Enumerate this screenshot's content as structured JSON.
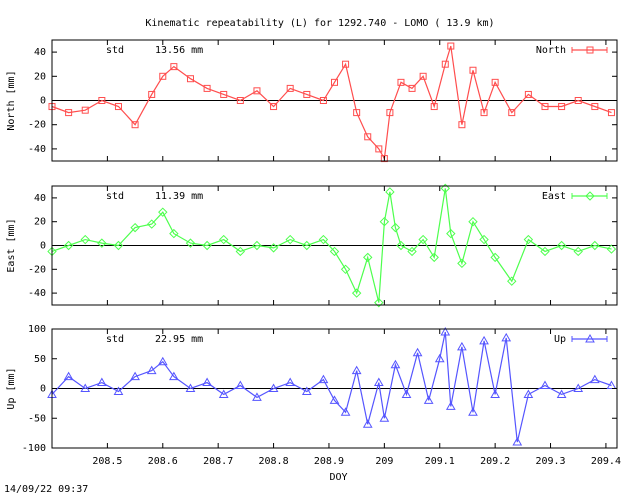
{
  "title": "Kinematic repeatability (L) for 1292.740 - LOMO  ( 13.9 km)",
  "timestamp": "14/09/22 09:37",
  "chart_data": [
    {
      "type": "line",
      "ylabel": "North [mm]",
      "legend": "North",
      "legend_position": "top-right",
      "color": "#ff4d4d",
      "marker": "square",
      "std_label": "std",
      "std_value": "13.56 mm",
      "ylim": [
        -50,
        50
      ],
      "yticks": [
        40,
        20,
        0,
        -20,
        -40
      ],
      "xlim": [
        208.4,
        209.42
      ],
      "zero_line": true,
      "series": [
        {
          "x": [
            208.4,
            208.43,
            208.46,
            208.49,
            208.52,
            208.55,
            208.58,
            208.6,
            208.62,
            208.65,
            208.68,
            208.71,
            208.74,
            208.77,
            208.8,
            208.83,
            208.86,
            208.89,
            208.91,
            208.93,
            208.95,
            208.97,
            208.99,
            209.0,
            209.01,
            209.03,
            209.05,
            209.07,
            209.09,
            209.11,
            209.12,
            209.14,
            209.16,
            209.18,
            209.2,
            209.23,
            209.26,
            209.29,
            209.32,
            209.35,
            209.38,
            209.41
          ],
          "y": [
            -5,
            -10,
            -8,
            0,
            -5,
            -20,
            5,
            20,
            28,
            18,
            10,
            5,
            0,
            8,
            -5,
            10,
            5,
            0,
            15,
            30,
            -10,
            -30,
            -40,
            -48,
            -10,
            15,
            10,
            20,
            -5,
            30,
            45,
            -20,
            25,
            -10,
            15,
            -10,
            5,
            -5,
            -5,
            0,
            -5,
            -10
          ]
        }
      ]
    },
    {
      "type": "line",
      "ylabel": "East [mm]",
      "legend": "East",
      "legend_position": "top-right",
      "color": "#4dff4d",
      "marker": "diamond",
      "std_label": "std",
      "std_value": "11.39 mm",
      "ylim": [
        -50,
        50
      ],
      "yticks": [
        40,
        20,
        0,
        -20,
        -40
      ],
      "xlim": [
        208.4,
        209.42
      ],
      "zero_line": true,
      "series": [
        {
          "x": [
            208.4,
            208.43,
            208.46,
            208.49,
            208.52,
            208.55,
            208.58,
            208.6,
            208.62,
            208.65,
            208.68,
            208.71,
            208.74,
            208.77,
            208.8,
            208.83,
            208.86,
            208.89,
            208.91,
            208.93,
            208.95,
            208.97,
            208.99,
            209.0,
            209.01,
            209.02,
            209.03,
            209.05,
            209.07,
            209.09,
            209.11,
            209.12,
            209.14,
            209.16,
            209.18,
            209.2,
            209.23,
            209.26,
            209.29,
            209.32,
            209.35,
            209.38,
            209.41
          ],
          "y": [
            -5,
            0,
            5,
            2,
            0,
            15,
            18,
            28,
            10,
            2,
            0,
            5,
            -5,
            0,
            -2,
            5,
            0,
            5,
            -5,
            -20,
            -40,
            -10,
            -48,
            20,
            45,
            15,
            0,
            -5,
            5,
            -10,
            48,
            10,
            -15,
            20,
            5,
            -10,
            -30,
            5,
            -5,
            0,
            -5,
            0,
            -3
          ]
        }
      ]
    },
    {
      "type": "line",
      "ylabel": "Up [mm]",
      "legend": "Up",
      "legend_position": "top-right",
      "color": "#5555ff",
      "marker": "triangle",
      "std_label": "std",
      "std_value": "22.95 mm",
      "ylim": [
        -100,
        100
      ],
      "yticks": [
        100,
        50,
        0,
        -50,
        -100
      ],
      "xlim": [
        208.4,
        209.42
      ],
      "xticks": [
        208.5,
        208.6,
        208.7,
        208.8,
        208.9,
        209,
        209.1,
        209.2,
        209.3,
        209.4
      ],
      "xlabel": "DOY",
      "zero_line": true,
      "series": [
        {
          "x": [
            208.4,
            208.43,
            208.46,
            208.49,
            208.52,
            208.55,
            208.58,
            208.6,
            208.62,
            208.65,
            208.68,
            208.71,
            208.74,
            208.77,
            208.8,
            208.83,
            208.86,
            208.89,
            208.91,
            208.93,
            208.95,
            208.97,
            208.99,
            209.0,
            209.02,
            209.04,
            209.06,
            209.08,
            209.1,
            209.11,
            209.12,
            209.14,
            209.16,
            209.18,
            209.2,
            209.22,
            209.24,
            209.26,
            209.29,
            209.32,
            209.35,
            209.38,
            209.41
          ],
          "y": [
            -10,
            20,
            0,
            10,
            -5,
            20,
            30,
            45,
            20,
            0,
            10,
            -10,
            5,
            -15,
            0,
            10,
            -5,
            15,
            -20,
            -40,
            30,
            -60,
            10,
            -50,
            40,
            -10,
            60,
            -20,
            50,
            95,
            -30,
            70,
            -40,
            80,
            -10,
            85,
            -90,
            -10,
            5,
            -10,
            0,
            15,
            5
          ]
        }
      ]
    }
  ]
}
